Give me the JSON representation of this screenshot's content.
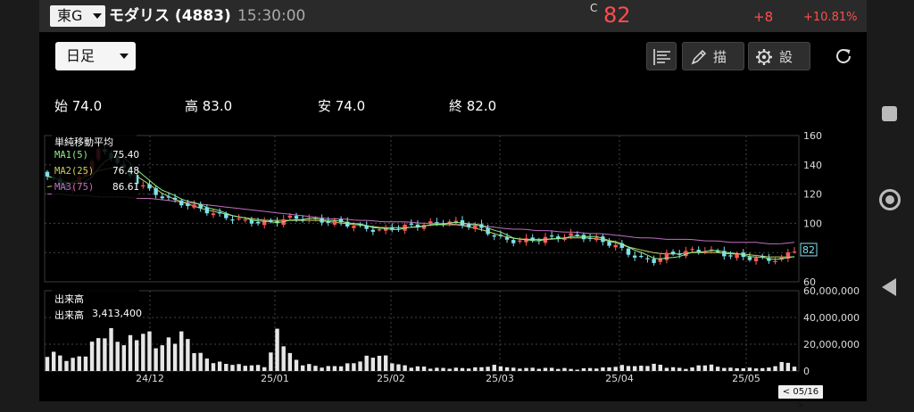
{
  "header": {
    "exchange": "東G",
    "stock_title": "モダリス (4883)",
    "time": "15:30:00",
    "c_mark": "C",
    "price": "82",
    "change": "+8",
    "change_pct": "+10.81%"
  },
  "toolbar": {
    "period": "日足",
    "draw_label": "描画",
    "settings_label": "設定"
  },
  "ohlc": {
    "open": "始 74.0",
    "high": "高 83.0",
    "low": "安 74.0",
    "close": "終 82.0"
  },
  "ma_legend": {
    "title": "単純移動平均",
    "ma1_label": "MA1(5)",
    "ma1_value": "75.40",
    "ma2_label": "MA2(25)",
    "ma2_value": "76.48",
    "ma3_label": "MA3(75)",
    "ma3_value": "86.61"
  },
  "volume_legend": {
    "title": "出来高",
    "label": "出来高",
    "value": "3,413,400"
  },
  "colors": {
    "up": "#ff5a5a",
    "down": "#7fe0ee",
    "ma1": "#8cf08c",
    "ma2": "#c8d060",
    "ma3": "#c070c0",
    "volume": "#e6e6e6"
  },
  "chart_data": {
    "type": "candlestick",
    "price_axis": {
      "ticks": [
        "160",
        "140",
        "120",
        "100",
        "80",
        "60"
      ],
      "ylim": [
        60,
        160
      ]
    },
    "volume_axis": {
      "ticks": [
        "60,000,000",
        "40,000,000",
        "20,000,000",
        "0"
      ],
      "ylim": [
        0,
        60000000
      ]
    },
    "x_ticks": [
      "24/12",
      "25/01",
      "25/02",
      "25/03",
      "25/04",
      "25/05"
    ],
    "last_price_label": "82",
    "current_date": "< 05/16 >",
    "close_path": [
      132,
      126,
      124,
      138,
      150,
      146,
      136,
      128,
      122,
      118,
      115,
      112,
      110,
      106,
      104,
      102,
      101,
      100,
      102,
      104,
      103,
      102,
      101,
      100,
      98,
      96,
      95,
      97,
      98,
      99,
      100,
      101,
      100,
      98,
      95,
      90,
      88,
      88,
      89,
      90,
      91,
      92,
      90,
      88,
      85,
      80,
      76,
      74,
      78,
      80,
      81,
      82,
      80,
      78,
      77,
      76,
      75,
      76,
      82
    ],
    "ma2_path": [
      125,
      126,
      128,
      132,
      136,
      138,
      136,
      132,
      126,
      120,
      116,
      113,
      110,
      108,
      106,
      104,
      103,
      102,
      102,
      102,
      102,
      102,
      101,
      100,
      99,
      98,
      97,
      97,
      97,
      98,
      99,
      99,
      99,
      97,
      95,
      92,
      90,
      89,
      89,
      89,
      90,
      90,
      90,
      89,
      87,
      84,
      82,
      80,
      79,
      79,
      80,
      80,
      80,
      79,
      79,
      78,
      77,
      77,
      77
    ],
    "ma3_path": [
      120,
      120,
      119,
      119,
      118,
      118,
      118,
      117,
      117,
      116,
      115,
      114,
      113,
      112,
      111,
      110,
      109,
      108,
      107,
      106,
      105,
      104,
      103,
      103,
      102,
      102,
      101,
      101,
      101,
      100,
      100,
      100,
      99,
      99,
      98,
      97,
      96,
      96,
      95,
      95,
      94,
      94,
      93,
      93,
      92,
      91,
      90,
      90,
      89,
      89,
      89,
      88,
      88,
      87,
      87,
      87,
      86,
      86,
      87
    ],
    "volume_path": [
      14,
      10,
      8,
      12,
      24,
      26,
      18,
      26,
      24,
      16,
      28,
      20,
      10,
      6,
      5,
      4,
      4,
      3,
      30,
      8,
      5,
      3,
      3,
      4,
      6,
      10,
      11,
      5,
      3,
      3,
      2,
      2,
      2,
      2,
      3,
      4,
      2,
      2,
      2,
      2,
      2,
      1,
      2,
      2,
      3,
      4,
      3,
      5,
      3,
      2,
      2,
      5,
      3,
      2,
      2,
      2,
      2,
      6,
      4
    ]
  }
}
